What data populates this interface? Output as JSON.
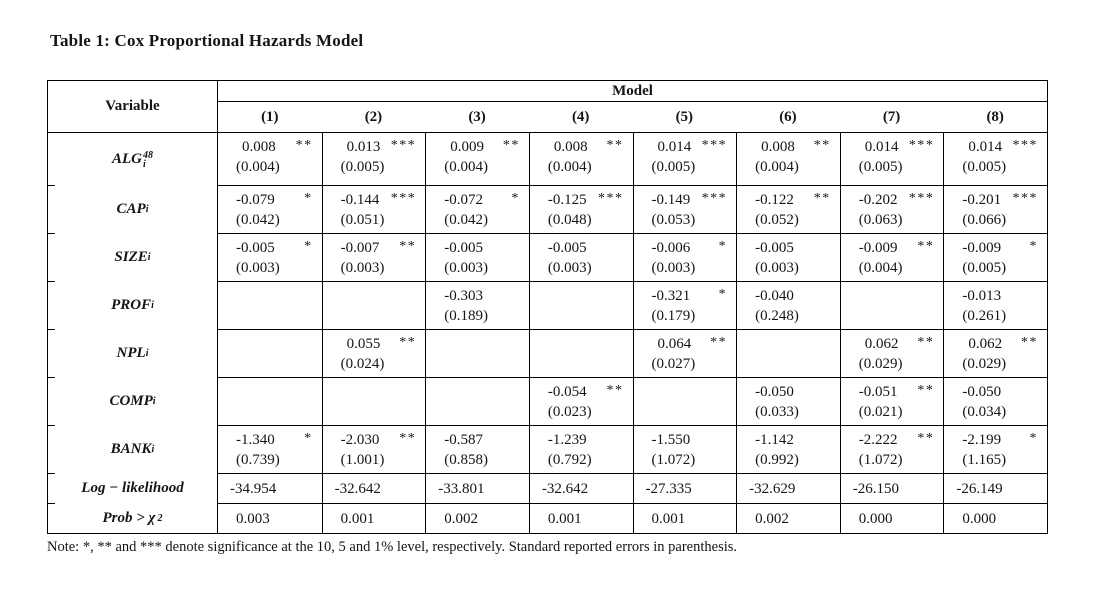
{
  "title": "Table 1: Cox Proportional Hazards Model",
  "note": "Note: *, ** and *** denote significance at the 10, 5 and 1% level, respectively. Standard reported errors in parenthesis.",
  "table": {
    "variable_header": "Variable",
    "group_header": "Model",
    "model_columns": [
      "(1)",
      "(2)",
      "(3)",
      "(4)",
      "(5)",
      "(6)",
      "(7)",
      "(8)"
    ],
    "rows": [
      {
        "label": "ALG",
        "sub": "i",
        "sup": "48",
        "cells": [
          {
            "coef": "0.008",
            "stars": "**",
            "se": "(0.004)"
          },
          {
            "coef": "0.013",
            "stars": "***",
            "se": "(0.005)"
          },
          {
            "coef": "0.009",
            "stars": "**",
            "se": "(0.004)"
          },
          {
            "coef": "0.008",
            "stars": "**",
            "se": "(0.004)"
          },
          {
            "coef": "0.014",
            "stars": "***",
            "se": "(0.005)"
          },
          {
            "coef": "0.008",
            "stars": "**",
            "se": "(0.004)"
          },
          {
            "coef": "0.014",
            "stars": "***",
            "se": "(0.005)"
          },
          {
            "coef": "0.014",
            "stars": "***",
            "se": "(0.005)"
          }
        ]
      },
      {
        "label": "CAP",
        "sub": "i",
        "cells": [
          {
            "coef": "-0.079",
            "stars": "*",
            "se": "(0.042)"
          },
          {
            "coef": "-0.144",
            "stars": "***",
            "se": "(0.051)"
          },
          {
            "coef": "-0.072",
            "stars": "*",
            "se": "(0.042)"
          },
          {
            "coef": "-0.125",
            "stars": "***",
            "se": "(0.048)"
          },
          {
            "coef": "-0.149",
            "stars": "***",
            "se": "(0.053)"
          },
          {
            "coef": "-0.122",
            "stars": "**",
            "se": "(0.052)"
          },
          {
            "coef": "-0.202",
            "stars": "***",
            "se": "(0.063)"
          },
          {
            "coef": "-0.201",
            "stars": "***",
            "se": "(0.066)"
          }
        ]
      },
      {
        "label": "SIZE",
        "sub": "i",
        "cells": [
          {
            "coef": "-0.005",
            "stars": "*",
            "se": "(0.003)"
          },
          {
            "coef": "-0.007",
            "stars": "**",
            "se": "(0.003)"
          },
          {
            "coef": "-0.005",
            "stars": "",
            "se": "(0.003)"
          },
          {
            "coef": "-0.005",
            "stars": "",
            "se": "(0.003)"
          },
          {
            "coef": "-0.006",
            "stars": "*",
            "se": "(0.003)"
          },
          {
            "coef": "-0.005",
            "stars": "",
            "se": "(0.003)"
          },
          {
            "coef": "-0.009",
            "stars": "**",
            "se": "(0.004)"
          },
          {
            "coef": "-0.009",
            "stars": "*",
            "se": "(0.005)"
          }
        ]
      },
      {
        "label": "PROF",
        "sub": "i",
        "cells": [
          null,
          null,
          {
            "coef": "-0.303",
            "stars": "",
            "se": "(0.189)"
          },
          null,
          {
            "coef": "-0.321",
            "stars": "*",
            "se": "(0.179)"
          },
          {
            "coef": "-0.040",
            "stars": "",
            "se": "(0.248)"
          },
          null,
          {
            "coef": "-0.013",
            "stars": "",
            "se": "(0.261)"
          }
        ]
      },
      {
        "label": "NPL",
        "sub": "i",
        "cells": [
          null,
          {
            "coef": "0.055",
            "stars": "**",
            "se": "(0.024)"
          },
          null,
          null,
          {
            "coef": "0.064",
            "stars": "**",
            "se": "(0.027)"
          },
          null,
          {
            "coef": "0.062",
            "stars": "**",
            "se": "(0.029)"
          },
          {
            "coef": "0.062",
            "stars": "**",
            "se": "(0.029)"
          }
        ]
      },
      {
        "label": "COMP",
        "sub": "i",
        "cells": [
          null,
          null,
          null,
          {
            "coef": "-0.054",
            "stars": "**",
            "se": "(0.023)"
          },
          null,
          {
            "coef": "-0.050",
            "stars": "",
            "se": "(0.033)"
          },
          {
            "coef": "-0.051",
            "stars": "**",
            "se": "(0.021)"
          },
          {
            "coef": "-0.050",
            "stars": "",
            "se": "(0.034)"
          }
        ]
      },
      {
        "label": "BANK",
        "sub": "i",
        "cells": [
          {
            "coef": "-1.340",
            "stars": "*",
            "se": "(0.739)"
          },
          {
            "coef": "-2.030",
            "stars": "**",
            "se": "(1.001)"
          },
          {
            "coef": "-0.587",
            "stars": "",
            "se": "(0.858)"
          },
          {
            "coef": "-1.239",
            "stars": "",
            "se": "(0.792)"
          },
          {
            "coef": "-1.550",
            "stars": "",
            "se": "(1.072)"
          },
          {
            "coef": "-1.142",
            "stars": "",
            "se": "(0.992)"
          },
          {
            "coef": "-2.222",
            "stars": "**",
            "se": "(1.072)"
          },
          {
            "coef": "-2.199",
            "stars": "*",
            "se": "(1.165)"
          }
        ]
      }
    ],
    "stat_rows": [
      {
        "label": "Log − likelihood",
        "values": [
          "-34.954",
          "-32.642",
          "-33.801",
          "-32.642",
          "-27.335",
          "-32.629",
          "-26.150",
          "-26.149"
        ]
      },
      {
        "label": "Prob > χ",
        "sup": "2",
        "values": [
          "0.003",
          "0.001",
          "0.002",
          "0.001",
          "0.001",
          "0.002",
          "0.000",
          "0.000"
        ]
      }
    ]
  }
}
